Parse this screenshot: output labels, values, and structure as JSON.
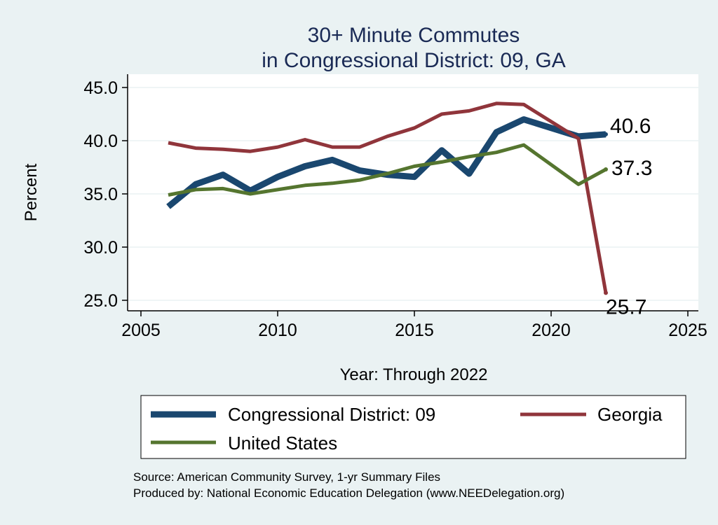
{
  "chart_data": {
    "type": "line",
    "title": [
      "30+ Minute Commutes",
      "in Congressional District:  09, GA"
    ],
    "xlabel": "Year: Through 2022",
    "ylabel": "Percent",
    "xlim": [
      2005,
      2025
    ],
    "ylim": [
      25,
      45
    ],
    "xticks": [
      "2005",
      "2010",
      "2015",
      "2020",
      "2025"
    ],
    "yticks": [
      "25.0",
      "30.0",
      "35.0",
      "40.0",
      "45.0"
    ],
    "x": [
      2006,
      2007,
      2008,
      2009,
      2010,
      2011,
      2012,
      2013,
      2014,
      2015,
      2016,
      2017,
      2018,
      2019,
      2020,
      2021,
      2022
    ],
    "series": [
      {
        "name": "Congressional District:  09",
        "color": "#1a476f",
        "x": [
          2006,
          2007,
          2008,
          2009,
          2010,
          2011,
          2012,
          2013,
          2014,
          2015,
          2016,
          2017,
          2018,
          2019,
          2021,
          2022
        ],
        "values": [
          33.8,
          35.9,
          36.8,
          35.3,
          36.6,
          37.6,
          38.2,
          37.2,
          36.8,
          36.6,
          39.1,
          36.9,
          40.8,
          42.0,
          40.4,
          40.6
        ],
        "end_label": "40.6"
      },
      {
        "name": "Georgia",
        "color": "#90353b",
        "x": [
          2006,
          2007,
          2008,
          2009,
          2010,
          2011,
          2012,
          2013,
          2014,
          2015,
          2016,
          2017,
          2018,
          2019,
          2021,
          2022
        ],
        "values": [
          39.8,
          39.3,
          39.2,
          39.0,
          39.4,
          40.1,
          39.4,
          39.4,
          40.4,
          41.2,
          42.5,
          42.8,
          43.5,
          43.4,
          40.2,
          25.7
        ],
        "end_label": "25.7"
      },
      {
        "name": "United States",
        "color": "#55752f",
        "x": [
          2006,
          2007,
          2008,
          2009,
          2010,
          2011,
          2012,
          2013,
          2014,
          2015,
          2016,
          2017,
          2018,
          2019,
          2021,
          2022
        ],
        "values": [
          34.9,
          35.4,
          35.5,
          35.0,
          35.4,
          35.8,
          36.0,
          36.3,
          36.9,
          37.6,
          38.0,
          38.5,
          38.9,
          39.6,
          35.9,
          37.3
        ],
        "end_label": "37.3"
      }
    ],
    "legend": {
      "position": "bottom",
      "entries": [
        "Congressional District:  09",
        "Georgia",
        "United States"
      ]
    },
    "source_lines": [
      "Source: American Community Survey, 1-yr Summary Files",
      "Produced by: National Economic Education Delegation (www.NEEDelegation.org)"
    ]
  }
}
